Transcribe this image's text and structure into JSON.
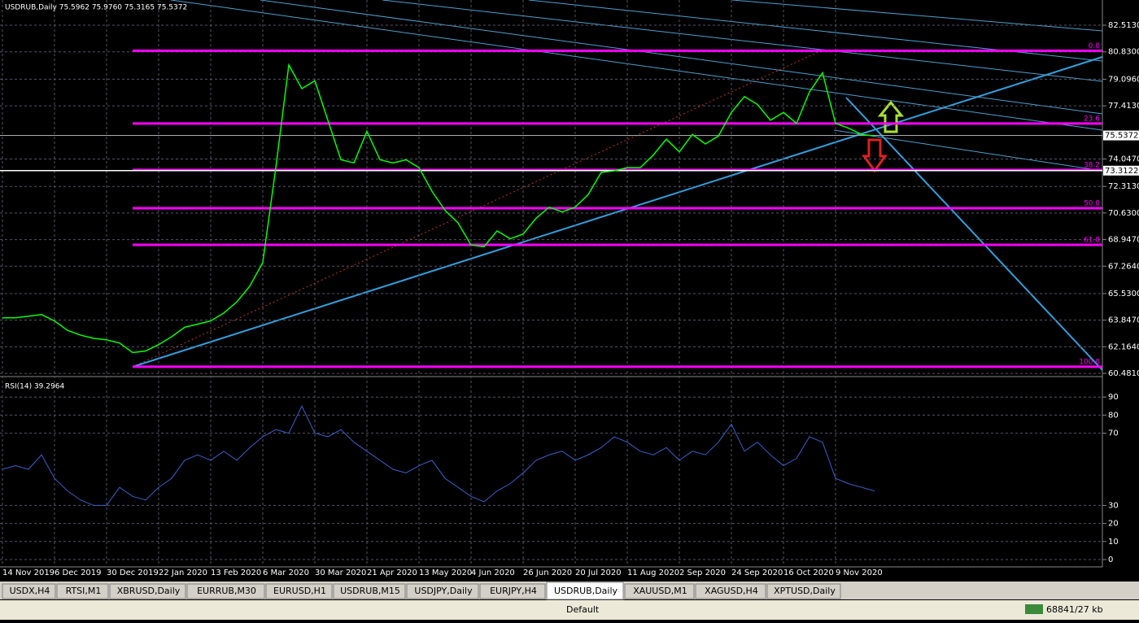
{
  "chart_data": [
    {
      "type": "line",
      "title": "USDRUB,Daily  75.5962 75.9760 75.3165 75.5372",
      "color": "#00ff00",
      "grid": true,
      "values": [
        64.0,
        64.0,
        64.1,
        64.2,
        63.8,
        63.2,
        62.9,
        62.7,
        62.6,
        62.4,
        61.8,
        61.9,
        62.3,
        62.8,
        63.4,
        63.6,
        63.8,
        64.3,
        65.0,
        66.0,
        67.5,
        73.5,
        80.0,
        78.5,
        79.0,
        76.5,
        74.0,
        73.8,
        75.8,
        74.0,
        73.8,
        74.0,
        73.5,
        72.0,
        70.8,
        70.0,
        68.6,
        68.5,
        69.5,
        69.0,
        69.3,
        70.3,
        71.0,
        70.7,
        71.0,
        71.8,
        73.2,
        73.3,
        73.5,
        73.5,
        74.3,
        75.3,
        74.5,
        75.6,
        75.0,
        75.5,
        77.0,
        78.0,
        77.5,
        76.5,
        77.0,
        76.3,
        78.3,
        79.5,
        76.3,
        76.0,
        75.6,
        75.5
      ],
      "ylim": [
        60.33,
        84.11
      ],
      "yticks": [
        {
          "value": 82.513,
          "label": "82.5130"
        },
        {
          "value": 80.83,
          "label": "80.8300"
        },
        {
          "value": 79.096,
          "label": "79.0960"
        },
        {
          "value": 77.413,
          "label": "77.4130"
        },
        {
          "value": 74.047,
          "label": "74.0470"
        },
        {
          "value": 72.313,
          "label": "72.3130"
        },
        {
          "value": 70.63,
          "label": "70.6300"
        },
        {
          "value": 68.947,
          "label": "68.9470"
        },
        {
          "value": 67.264,
          "label": "67.2640"
        },
        {
          "value": 65.53,
          "label": "65.5300"
        },
        {
          "value": 63.847,
          "label": "63.8470"
        },
        {
          "value": 62.164,
          "label": "62.1640"
        },
        {
          "value": 60.481,
          "label": "60.4810"
        }
      ],
      "price_lines": [
        75.5372,
        73.3122
      ],
      "fib_color": "#ff00ff",
      "fib_levels": [
        {
          "value": 80.9,
          "label": "0.0"
        },
        {
          "value": 76.29,
          "label": "23.6"
        },
        {
          "value": 73.35,
          "label": "38.2"
        },
        {
          "value": 70.93,
          "label": "50.0"
        },
        {
          "value": 68.62,
          "label": "61.8"
        },
        {
          "value": 60.9,
          "label": "100.0"
        }
      ]
    },
    {
      "type": "line",
      "title": "RSI(14) 39.2964",
      "color": "#3a5fcd",
      "grid": true,
      "values": [
        50,
        52,
        50,
        58,
        45,
        38,
        33,
        30,
        30,
        40,
        35,
        33,
        40,
        45,
        55,
        58,
        55,
        60,
        55,
        62,
        68,
        72,
        70,
        85,
        70,
        68,
        72,
        65,
        60,
        55,
        50,
        48,
        52,
        55,
        45,
        40,
        35,
        32,
        38,
        42,
        48,
        55,
        58,
        60,
        55,
        58,
        62,
        68,
        65,
        60,
        58,
        62,
        55,
        60,
        58,
        65,
        75,
        60,
        65,
        58,
        52,
        56,
        68,
        65,
        45,
        42,
        40,
        38
      ],
      "ylim": [
        -3.15,
        100
      ],
      "yticks": [
        90,
        80,
        70,
        30,
        20,
        10,
        0
      ]
    }
  ],
  "time_axis": [
    "14 Nov 2019",
    "6 Dec 2019",
    "30 Dec 2019",
    "22 Jan 2020",
    "13 Feb 2020",
    "6 Mar 2020",
    "30 Mar 2020",
    "21 Apr 2020",
    "13 May 2020",
    "4 Jun 2020",
    "26 Jun 2020",
    "20 Jul 2020",
    "11 Aug 2020",
    "2 Sep 2020",
    "24 Sep 2020",
    "16 Oct 2020",
    "9 Nov 2020"
  ],
  "tabs": [
    "USDX,H4",
    "RTSI,M1",
    "XBRUSD,Daily",
    "EURRUB,M30",
    "EURUSD,H1",
    "USDRUB,M15",
    "USDJPY,Daily",
    "EURJPY,H4",
    "USDRUB,Daily",
    "XAUUSD,M1",
    "XAGUSD,H4",
    "XPTUSD,Daily"
  ],
  "active_tab": 8,
  "status": {
    "profile": "Default",
    "traffic": "68841/27 kb"
  }
}
